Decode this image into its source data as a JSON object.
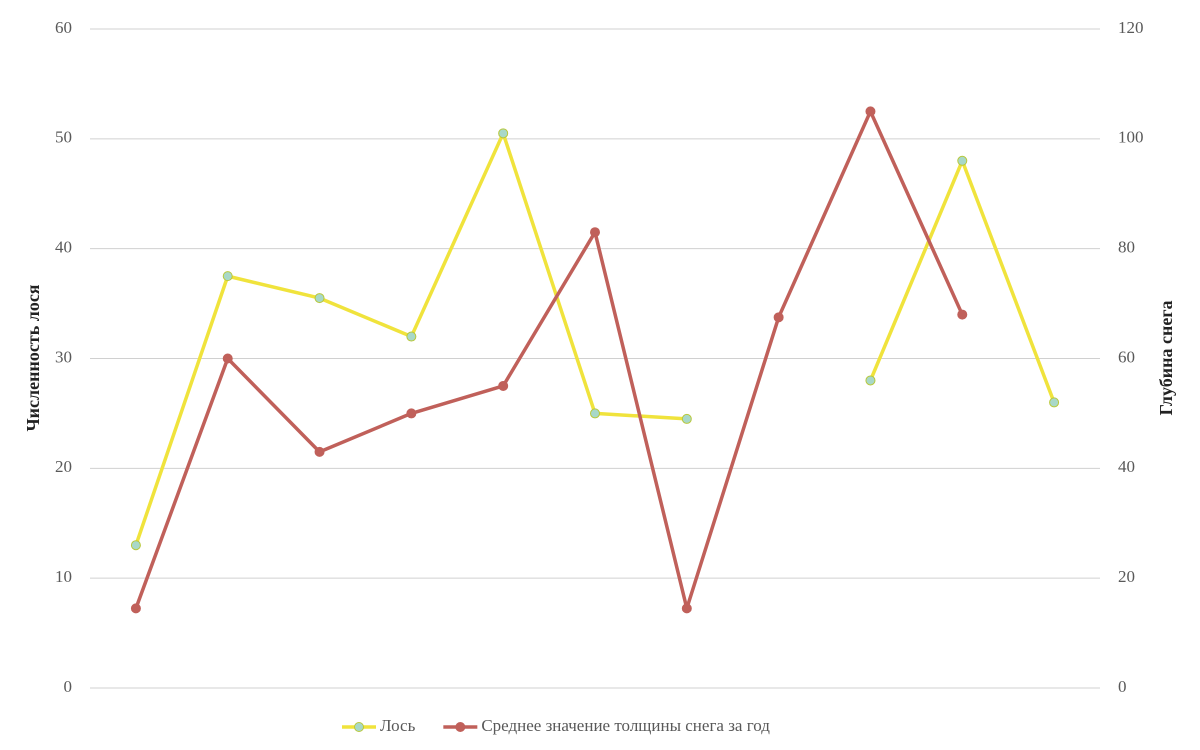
{
  "chart_data": {
    "type": "line",
    "categories": [
      null,
      null,
      null,
      null,
      null,
      null,
      null,
      null,
      null,
      null,
      null
    ],
    "series": [
      {
        "name": "Лось",
        "color": "#f0e33c",
        "marker_fill": "#a8d8c8",
        "values": [
          13,
          37.5,
          35.5,
          32,
          50.5,
          25,
          24.5,
          null,
          28,
          48,
          26
        ]
      },
      {
        "name": "Среднее значение толщины снега за год",
        "color": "#c0605a",
        "marker_fill": "#c0605a",
        "axis": "y2",
        "values": [
          14.5,
          60,
          43,
          50,
          55,
          83,
          14.5,
          67.5,
          105,
          68,
          null
        ]
      }
    ],
    "ylabel": "Численность лося",
    "y2label": "Глубина снега",
    "ylim": [
      0,
      60
    ],
    "yticks": [
      0,
      10,
      20,
      30,
      40,
      50,
      60
    ],
    "y2lim": [
      0,
      120
    ],
    "y2ticks": [
      0,
      20,
      40,
      60,
      80,
      100,
      120
    ],
    "grid": true,
    "legend": "bottom"
  }
}
